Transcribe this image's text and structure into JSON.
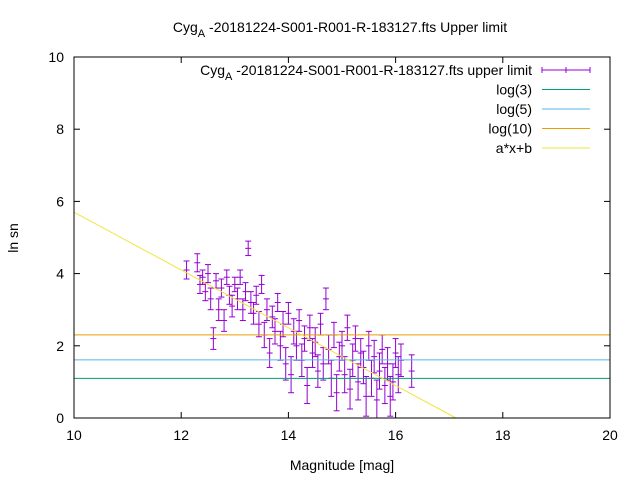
{
  "chart_data": {
    "type": "scatter",
    "title": "Cyg_A -20181224-S001-R001-R-183127.fts Upper limit",
    "title_parts": {
      "prefix": "Cyg",
      "sub": "A",
      "suffix": " -20181224-S001-R001-R-183127.fts Upper limit"
    },
    "xlabel": "Magnitude [mag]",
    "ylabel": "ln sn",
    "xlim": [
      10,
      20
    ],
    "ylim": [
      0,
      10
    ],
    "xticks": [
      "10",
      "12",
      "14",
      "16",
      "18",
      "20"
    ],
    "yticks": [
      "0",
      "2",
      "4",
      "6",
      "8",
      "10"
    ],
    "grid": false,
    "legend_position": "top-right",
    "legend": [
      {
        "label": "Cyg_A -20181224-S001-R001-R-183127.fts upper limit",
        "prefix": "Cyg",
        "sub": "A",
        "suffix": " -20181224-S001-R001-R-183127.fts upper limit",
        "color": "#9400d3",
        "style": "errorbars"
      },
      {
        "label": "log(3)",
        "color": "#009e73",
        "style": "line"
      },
      {
        "label": "log(5)",
        "color": "#56b4e9",
        "style": "line"
      },
      {
        "label": "log(10)",
        "color": "#e69f00",
        "style": "line"
      },
      {
        "label": "a*x+b",
        "color": "#f0e442",
        "style": "line"
      }
    ],
    "series": [
      {
        "name": "Cyg_A -20181224-S001-R001-R-183127.fts upper limit",
        "color": "#9400d3",
        "points": [
          [
            12.1,
            4.1,
            0.25
          ],
          [
            12.3,
            4.3,
            0.25
          ],
          [
            12.35,
            3.7,
            0.25
          ],
          [
            12.4,
            3.9,
            0.2
          ],
          [
            12.45,
            3.5,
            0.25
          ],
          [
            12.5,
            4.0,
            0.25
          ],
          [
            12.55,
            3.3,
            0.3
          ],
          [
            12.6,
            2.2,
            0.3
          ],
          [
            12.65,
            3.8,
            0.2
          ],
          [
            12.7,
            3.0,
            0.3
          ],
          [
            12.75,
            3.6,
            0.25
          ],
          [
            12.8,
            2.7,
            0.3
          ],
          [
            12.85,
            3.9,
            0.2
          ],
          [
            12.9,
            3.4,
            0.25
          ],
          [
            12.95,
            3.1,
            0.3
          ],
          [
            13.0,
            3.7,
            0.2
          ],
          [
            13.05,
            3.3,
            0.3
          ],
          [
            13.1,
            3.9,
            0.2
          ],
          [
            13.15,
            3.0,
            0.3
          ],
          [
            13.2,
            3.5,
            0.25
          ],
          [
            13.25,
            4.7,
            0.2
          ],
          [
            13.3,
            3.2,
            0.3
          ],
          [
            13.35,
            2.9,
            0.3
          ],
          [
            13.4,
            3.4,
            0.25
          ],
          [
            13.45,
            2.6,
            0.35
          ],
          [
            13.5,
            3.7,
            0.25
          ],
          [
            13.55,
            2.3,
            0.35
          ],
          [
            13.6,
            3.0,
            0.3
          ],
          [
            13.65,
            1.8,
            0.4
          ],
          [
            13.7,
            2.8,
            0.3
          ],
          [
            13.75,
            2.4,
            0.35
          ],
          [
            13.8,
            3.2,
            0.25
          ],
          [
            13.85,
            2.0,
            0.4
          ],
          [
            13.9,
            2.6,
            0.35
          ],
          [
            13.95,
            1.5,
            0.45
          ],
          [
            14.0,
            2.9,
            0.3
          ],
          [
            14.05,
            1.2,
            0.5
          ],
          [
            14.1,
            2.4,
            0.35
          ],
          [
            14.15,
            2.0,
            0.4
          ],
          [
            14.2,
            2.7,
            0.3
          ],
          [
            14.25,
            1.6,
            0.45
          ],
          [
            14.3,
            2.2,
            0.35
          ],
          [
            14.35,
            0.9,
            0.5
          ],
          [
            14.4,
            2.5,
            0.35
          ],
          [
            14.45,
            1.8,
            0.4
          ],
          [
            14.5,
            2.1,
            0.4
          ],
          [
            14.55,
            1.3,
            0.45
          ],
          [
            14.6,
            2.6,
            0.3
          ],
          [
            14.65,
            1.5,
            0.45
          ],
          [
            14.7,
            3.3,
            0.3
          ],
          [
            14.75,
            1.9,
            0.4
          ],
          [
            14.8,
            1.1,
            0.5
          ],
          [
            14.85,
            2.3,
            0.35
          ],
          [
            14.9,
            0.7,
            0.5
          ],
          [
            14.95,
            1.7,
            0.4
          ],
          [
            15.0,
            2.0,
            0.4
          ],
          [
            15.05,
            1.2,
            0.5
          ],
          [
            15.1,
            2.5,
            0.35
          ],
          [
            15.15,
            0.8,
            0.55
          ],
          [
            15.2,
            1.6,
            0.45
          ],
          [
            15.25,
            2.2,
            0.35
          ],
          [
            15.3,
            1.0,
            0.5
          ],
          [
            15.35,
            1.8,
            0.4
          ],
          [
            15.4,
            1.4,
            0.45
          ],
          [
            15.45,
            0.6,
            0.55
          ],
          [
            15.5,
            2.0,
            0.4
          ],
          [
            15.55,
            1.1,
            0.5
          ],
          [
            15.6,
            1.7,
            0.45
          ],
          [
            15.65,
            0.5,
            0.55
          ],
          [
            15.7,
            1.3,
            0.5
          ],
          [
            15.75,
            1.9,
            0.4
          ],
          [
            15.8,
            0.9,
            0.5
          ],
          [
            15.85,
            1.5,
            0.45
          ],
          [
            15.9,
            0.6,
            0.55
          ],
          [
            15.95,
            1.0,
            0.5
          ],
          [
            16.0,
            1.8,
            0.4
          ],
          [
            16.05,
            1.2,
            0.5
          ],
          [
            16.1,
            1.6,
            0.45
          ],
          [
            16.3,
            1.3,
            0.45
          ]
        ]
      }
    ],
    "hlines": [
      {
        "name": "log(3)",
        "y": 1.0986,
        "color": "#009e73"
      },
      {
        "name": "log(5)",
        "y": 1.6094,
        "color": "#56b4e9"
      },
      {
        "name": "log(10)",
        "y": 2.3026,
        "color": "#e69f00"
      }
    ],
    "fit_line": {
      "name": "a*x+b",
      "a": -0.8,
      "b": 13.7,
      "color": "#f0e442"
    }
  }
}
